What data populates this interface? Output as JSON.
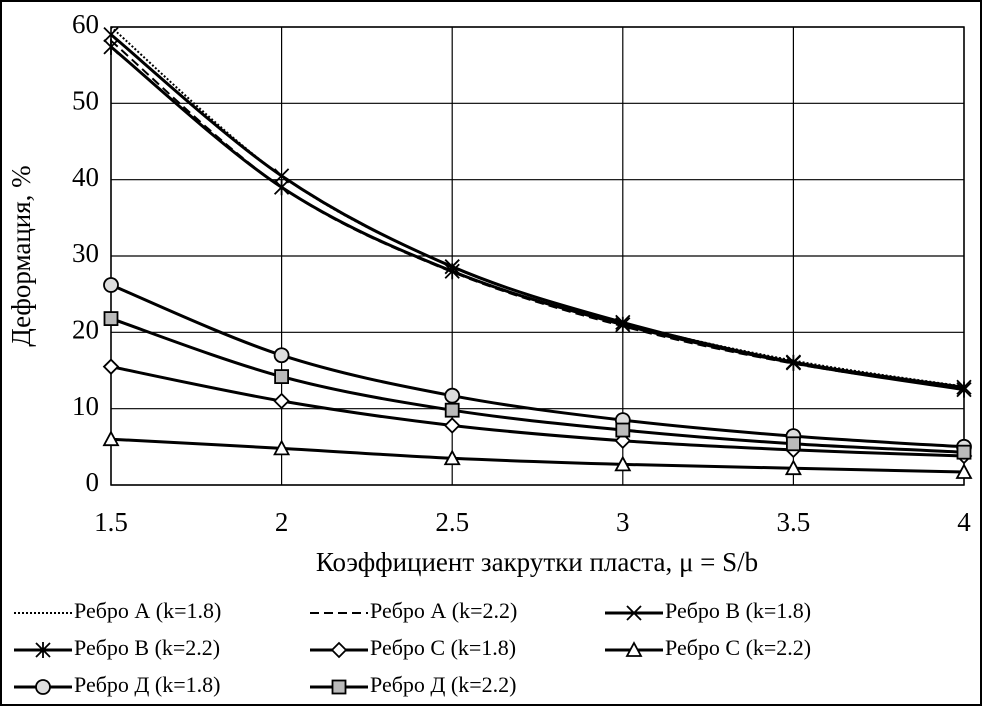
{
  "chart_data": {
    "type": "line",
    "x_label": "Коэффициент закрутки пласта, μ = S/b",
    "y_label": "Деформация, %",
    "x": [
      1.5,
      2,
      2.5,
      3,
      3.5,
      4
    ],
    "xlim": [
      1.5,
      4
    ],
    "xticks": [
      1.5,
      2,
      2.5,
      3,
      3.5,
      4
    ],
    "ylim": [
      0,
      60
    ],
    "yticks": [
      0,
      10,
      20,
      30,
      40,
      50,
      60
    ],
    "grid": true,
    "legend": "bottom",
    "series": [
      {
        "name": "Ребро А (k=1.8)",
        "color": "#000000",
        "dash": "dotted",
        "marker": "none",
        "values": [
          60,
          40.5,
          28.6,
          21.3,
          16.3,
          12.9
        ]
      },
      {
        "name": "Ребро А (k=2.2)",
        "color": "#000000",
        "dash": "dashed",
        "marker": "none",
        "values": [
          58.2,
          39,
          27.9,
          20.8,
          15.9,
          12.6
        ]
      },
      {
        "name": "Ребро В (k=1.8)",
        "color": "#000000",
        "dash": "solid",
        "marker": "x",
        "values": [
          59,
          40.5,
          28.6,
          21.3,
          16.1,
          12.8
        ]
      },
      {
        "name": "Ребро В (k=2.2)",
        "color": "#000000",
        "dash": "solid",
        "marker": "star",
        "values": [
          57.4,
          39,
          28,
          21,
          16,
          12.5
        ]
      },
      {
        "name": "Ребро С (k=1.8)",
        "color": "#000000",
        "dash": "solid",
        "marker": "diamond",
        "values": [
          15.5,
          11,
          7.8,
          5.8,
          4.6,
          3.8
        ]
      },
      {
        "name": "Ребро С (k=2.2)",
        "color": "#000000",
        "dash": "solid",
        "marker": "triangle",
        "values": [
          6,
          4.8,
          3.5,
          2.7,
          2.2,
          1.7
        ]
      },
      {
        "name": "Ребро Д (k=1.8)",
        "color": "#000000",
        "dash": "solid",
        "marker": "circle",
        "values": [
          26.2,
          17,
          11.7,
          8.5,
          6.4,
          5
        ]
      },
      {
        "name": "Ребро Д (k=2.2)",
        "color": "#000000",
        "dash": "solid",
        "marker": "square",
        "values": [
          21.8,
          14.2,
          9.8,
          7.2,
          5.4,
          4.3
        ]
      }
    ]
  }
}
